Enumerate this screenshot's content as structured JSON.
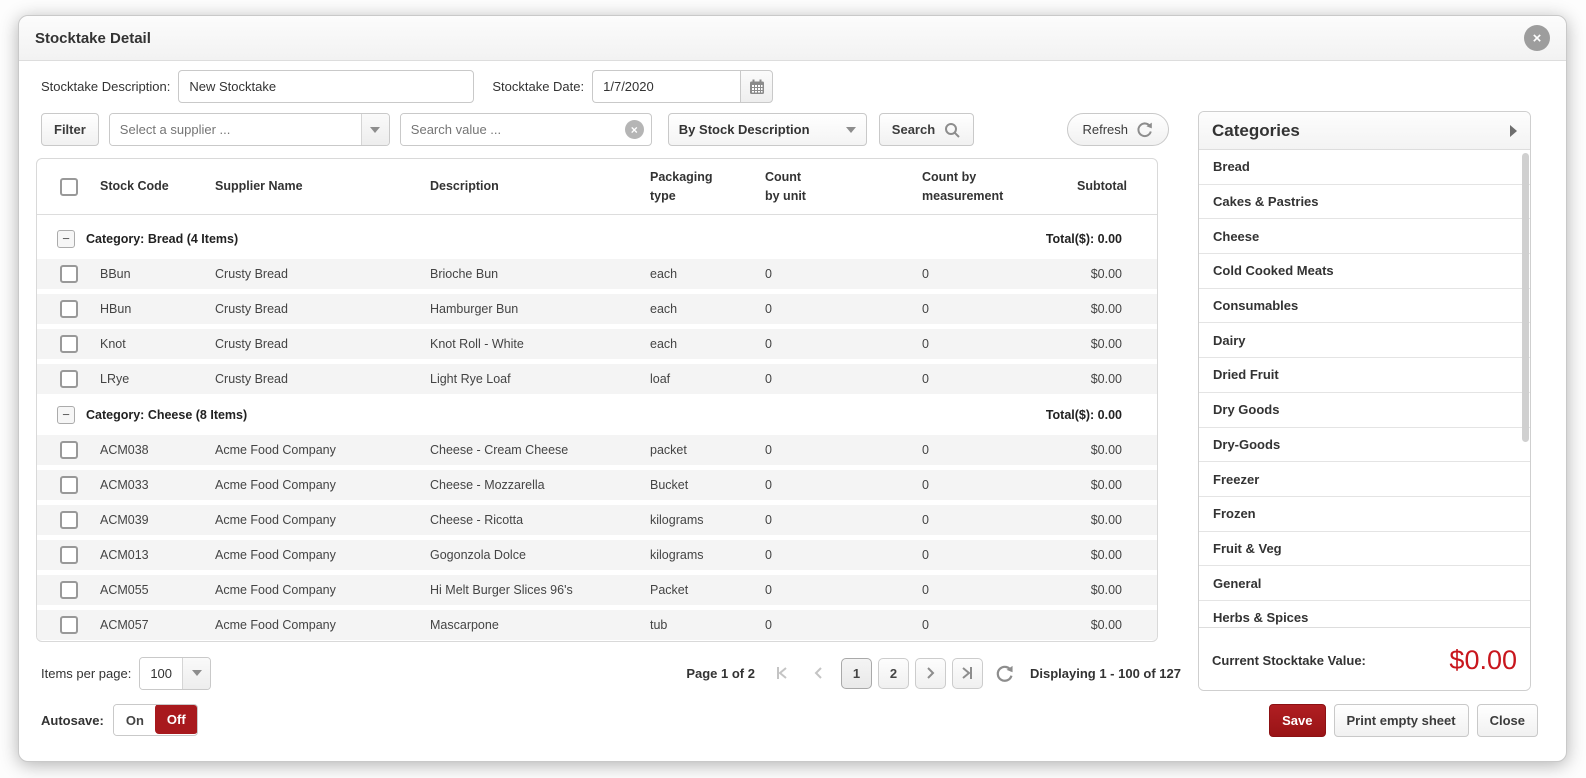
{
  "modal": {
    "title": "Stocktake Detail",
    "close_icon": "×"
  },
  "form": {
    "description_label": "Stocktake Description:",
    "description_value": "New Stocktake",
    "date_label": "Stocktake Date:",
    "date_value": "1/7/2020"
  },
  "filter_bar": {
    "filter_button": "Filter",
    "supplier_placeholder": "Select a supplier ...",
    "search_placeholder": "Search value ...",
    "clear_icon": "×",
    "search_by_value": "By Stock Description",
    "search_button": "Search",
    "refresh_button": "Refresh"
  },
  "table": {
    "columns": [
      "Stock Code",
      "Supplier Name",
      "Description",
      "Packaging type",
      "Count by unit",
      "Count by measurement",
      "Subtotal"
    ],
    "groups": [
      {
        "label": "Category: Bread (4 Items)",
        "total": "Total($): 0.00",
        "rows": [
          [
            "BBun",
            "Crusty Bread",
            "Brioche Bun",
            "each",
            "0",
            "0",
            "$0.00"
          ],
          [
            "HBun",
            "Crusty Bread",
            "Hamburger Bun",
            "each",
            "0",
            "0",
            "$0.00"
          ],
          [
            "Knot",
            "Crusty Bread",
            "Knot Roll - White",
            "each",
            "0",
            "0",
            "$0.00"
          ],
          [
            "LRye",
            "Crusty Bread",
            "Light Rye Loaf",
            "loaf",
            "0",
            "0",
            "$0.00"
          ]
        ]
      },
      {
        "label": "Category: Cheese (8 Items)",
        "total": "Total($): 0.00",
        "rows": [
          [
            "ACM038",
            "Acme Food Company",
            "Cheese - Cream Cheese",
            "packet",
            "0",
            "0",
            "$0.00"
          ],
          [
            "ACM033",
            "Acme Food Company",
            "Cheese - Mozzarella",
            "Bucket",
            "0",
            "0",
            "$0.00"
          ],
          [
            "ACM039",
            "Acme Food Company",
            "Cheese - Ricotta",
            "kilograms",
            "0",
            "0",
            "$0.00"
          ],
          [
            "ACM013",
            "Acme Food Company",
            "Gogonzola Dolce",
            "kilograms",
            "0",
            "0",
            "$0.00"
          ],
          [
            "ACM055",
            "Acme Food Company",
            "Hi Melt Burger Slices 96's",
            "Packet",
            "0",
            "0",
            "$0.00"
          ],
          [
            "ACM057",
            "Acme Food Company",
            "Mascarpone",
            "tub",
            "0",
            "0",
            "$0.00"
          ]
        ]
      }
    ]
  },
  "pagination": {
    "items_per_page_label": "Items per page:",
    "items_per_page_value": "100",
    "page_label": "Page 1 of 2",
    "pages": [
      "1",
      "2"
    ],
    "current_page": "1",
    "displaying": "Displaying 1 - 100 of 127"
  },
  "footer": {
    "autosave_label": "Autosave:",
    "autosave_on": "On",
    "autosave_off": "Off",
    "save_button": "Save",
    "print_button": "Print empty sheet",
    "close_button": "Close"
  },
  "categories_panel": {
    "title": "Categories",
    "items": [
      "Bread",
      "Cakes & Pastries",
      "Cheese",
      "Cold Cooked Meats",
      "Consumables",
      "Dairy",
      "Dried Fruit",
      "Dry Goods",
      "Dry-Goods",
      "Freezer",
      "Frozen",
      "Fruit & Veg",
      "General",
      "Herbs & Spices"
    ],
    "value_label": "Current Stocktake Value:",
    "value": "$0.00"
  },
  "colors": {
    "accent_red": "#a8191d",
    "value_red": "#c8161d"
  }
}
